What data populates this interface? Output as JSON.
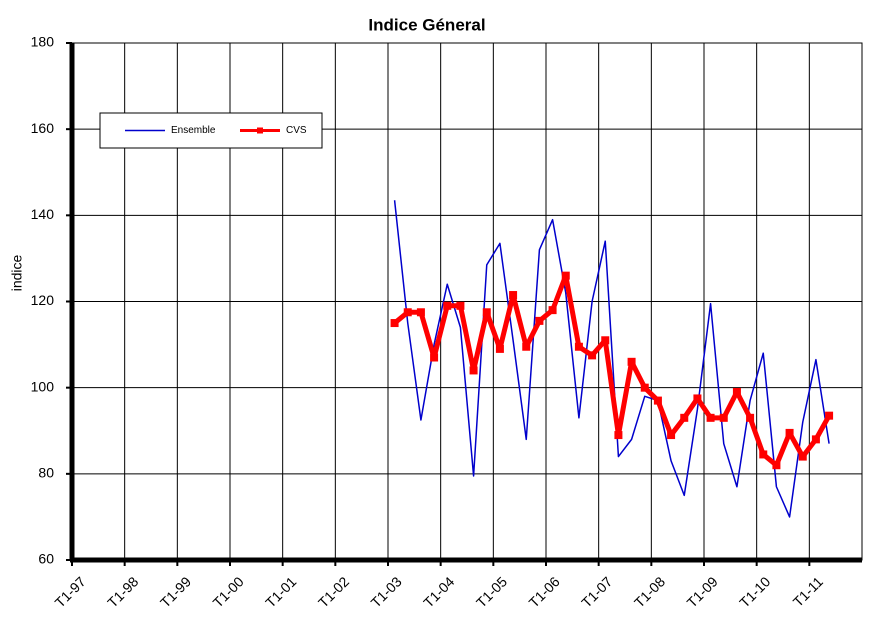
{
  "chart_data": {
    "type": "line",
    "title": "Indice Géneral",
    "y_label": "indice",
    "categories": [
      "T1-97",
      null,
      null,
      null,
      "T1-98",
      null,
      null,
      null,
      "T1-99",
      null,
      null,
      null,
      "T1-00",
      null,
      null,
      null,
      "T1-01",
      null,
      null,
      null,
      "T1-02",
      null,
      null,
      null,
      "T1-03",
      null,
      null,
      null,
      "T1-04",
      null,
      null,
      null,
      "T1-05",
      null,
      null,
      null,
      "T1-06",
      null,
      null,
      null,
      "T1-07",
      null,
      null,
      null,
      "T1-08",
      null,
      null,
      null,
      "T1-09",
      null,
      null,
      null,
      "T1-10",
      null,
      null,
      null,
      "T1-11",
      null,
      null,
      null
    ],
    "series": [
      {
        "name": "Ensemble",
        "color": "#0000cc",
        "values": [
          null,
          null,
          null,
          null,
          null,
          null,
          null,
          null,
          null,
          null,
          null,
          null,
          null,
          null,
          null,
          null,
          null,
          null,
          null,
          null,
          null,
          null,
          null,
          null,
          143.5,
          115,
          92.5,
          110,
          124,
          114,
          79.5,
          128.5,
          133.5,
          111,
          88,
          132,
          139,
          122,
          93,
          120,
          134,
          84,
          88,
          98,
          97,
          83,
          75,
          95,
          119.5,
          87,
          77,
          97,
          108,
          77,
          70,
          92,
          106.5,
          87,
          null,
          null
        ]
      },
      {
        "name": "CVS",
        "color": "#ff0000",
        "marker": "square",
        "values": [
          null,
          null,
          null,
          null,
          null,
          null,
          null,
          null,
          null,
          null,
          null,
          null,
          null,
          null,
          null,
          null,
          null,
          null,
          null,
          null,
          null,
          null,
          null,
          null,
          115,
          117.5,
          117.5,
          107,
          119,
          119,
          104,
          117.5,
          109,
          121.5,
          109.5,
          115.5,
          118,
          126,
          109.5,
          107.5,
          111,
          89,
          106,
          100,
          97,
          89,
          93,
          97.5,
          93,
          93,
          99,
          93,
          84.5,
          82,
          89.5,
          84,
          88,
          93.5,
          null,
          null
        ]
      }
    ],
    "ylim": [
      60,
      180
    ],
    "yticks": [
      60,
      80,
      100,
      120,
      140,
      160,
      180
    ],
    "grid": true
  }
}
